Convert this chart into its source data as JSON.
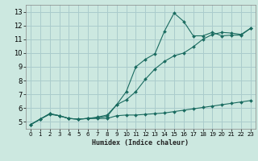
{
  "xlabel": "Humidex (Indice chaleur)",
  "background_color": "#cce8e0",
  "grid_color": "#aacccc",
  "line_color": "#1a6b60",
  "xlim": [
    -0.5,
    23.5
  ],
  "ylim": [
    4.5,
    13.5
  ],
  "xticks": [
    0,
    1,
    2,
    3,
    4,
    5,
    6,
    7,
    8,
    9,
    10,
    11,
    12,
    13,
    14,
    15,
    16,
    17,
    18,
    19,
    20,
    21,
    22,
    23
  ],
  "yticks": [
    5,
    6,
    7,
    8,
    9,
    10,
    11,
    12,
    13
  ],
  "series1_x": [
    0,
    1,
    2,
    3,
    4,
    5,
    6,
    7,
    8,
    9,
    10,
    11,
    12,
    13,
    14,
    15,
    16,
    17,
    18,
    19,
    20,
    21,
    22,
    23
  ],
  "series1_y": [
    4.8,
    5.2,
    5.55,
    5.45,
    5.25,
    5.2,
    5.25,
    5.25,
    5.25,
    5.45,
    5.5,
    5.5,
    5.55,
    5.6,
    5.65,
    5.75,
    5.85,
    5.95,
    6.05,
    6.15,
    6.25,
    6.35,
    6.45,
    6.55
  ],
  "series2_x": [
    0,
    1,
    2,
    3,
    4,
    5,
    6,
    7,
    8,
    9,
    10,
    11,
    12,
    13,
    14,
    15,
    16,
    17,
    18,
    19,
    20,
    21,
    22,
    23
  ],
  "series2_y": [
    4.8,
    5.2,
    5.6,
    5.45,
    5.25,
    5.2,
    5.25,
    5.3,
    5.4,
    6.25,
    6.6,
    7.2,
    8.1,
    8.85,
    9.4,
    9.8,
    10.0,
    10.45,
    11.0,
    11.35,
    11.5,
    11.45,
    11.35,
    11.8
  ],
  "series3_x": [
    0,
    1,
    2,
    3,
    4,
    5,
    6,
    7,
    8,
    9,
    10,
    11,
    12,
    13,
    14,
    15,
    16,
    17,
    18,
    19,
    20,
    21,
    22,
    23
  ],
  "series3_y": [
    4.8,
    5.2,
    5.6,
    5.45,
    5.25,
    5.2,
    5.25,
    5.35,
    5.5,
    6.25,
    7.2,
    9.0,
    9.55,
    9.95,
    11.6,
    12.9,
    12.3,
    11.25,
    11.25,
    11.5,
    11.25,
    11.3,
    11.3,
    11.8
  ]
}
